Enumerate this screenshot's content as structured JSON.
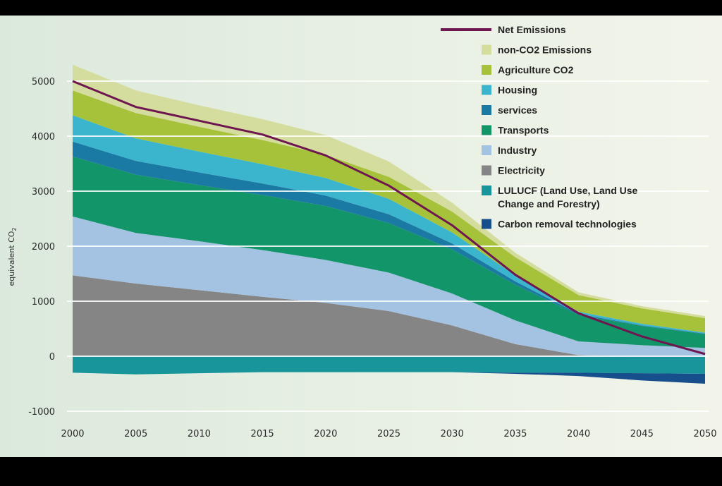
{
  "chart_data": {
    "type": "area",
    "title": "",
    "xlabel": "",
    "ylabel": "equivalent CO",
    "ylabel_sub": "2",
    "xlim": [
      2000,
      2050
    ],
    "ylim": [
      -1200,
      5400
    ],
    "grid": true,
    "legend_position": "top-right",
    "x": [
      2000,
      2005,
      2010,
      2015,
      2020,
      2025,
      2030,
      2035,
      2040,
      2045,
      2050
    ],
    "x_ticks": [
      "2000",
      "2005",
      "2010",
      "2015",
      "2020",
      "2025",
      "2030",
      "2035",
      "2040",
      "2045",
      "2050"
    ],
    "y_ticks": [
      {
        "value": 5000,
        "label": "5000"
      },
      {
        "value": 4000,
        "label": "4000"
      },
      {
        "value": 3000,
        "label": "3000"
      },
      {
        "value": 2000,
        "label": "2000"
      },
      {
        "value": 1000,
        "label": "1000"
      },
      {
        "value": 0,
        "label": "0"
      },
      {
        "value": -1000,
        "label": "-1000"
      }
    ],
    "positive_series": [
      {
        "name": "Electricity",
        "color": "#858585",
        "values": [
          1470,
          1320,
          1200,
          1080,
          970,
          820,
          560,
          220,
          20,
          0,
          0
        ]
      },
      {
        "name": "Industry",
        "color": "#a4c3e3",
        "values": [
          1070,
          920,
          890,
          850,
          780,
          700,
          580,
          430,
          250,
          200,
          150
        ]
      },
      {
        "name": "Transports",
        "color": "#13956a",
        "values": [
          1090,
          1060,
          1020,
          1000,
          980,
          900,
          800,
          650,
          480,
          350,
          250
        ]
      },
      {
        "name": "services",
        "color": "#1b7aa3",
        "values": [
          270,
          250,
          230,
          210,
          190,
          160,
          110,
          60,
          20,
          10,
          10
        ]
      },
      {
        "name": "Housing",
        "color": "#3ab5cd",
        "values": [
          480,
          410,
          380,
          350,
          320,
          280,
          200,
          110,
          40,
          30,
          20
        ]
      },
      {
        "name": "Agriculture CO2",
        "color": "#a6c23a",
        "values": [
          450,
          460,
          450,
          440,
          420,
          400,
          380,
          330,
          300,
          280,
          260
        ]
      },
      {
        "name": "non-CO2 Emissions",
        "color": "#d5dd9e",
        "values": [
          470,
          410,
          390,
          380,
          360,
          280,
          160,
          80,
          50,
          40,
          40
        ]
      }
    ],
    "negative_series": [
      {
        "name": "LULUCF (Land Use, Land Use Change and Forestry)",
        "color": "#17959b",
        "values": [
          -300,
          -330,
          -310,
          -290,
          -290,
          -290,
          -290,
          -300,
          -300,
          -310,
          -320
        ]
      },
      {
        "name": "Carbon removal technologies",
        "color": "#164f8c",
        "values": [
          0,
          0,
          0,
          0,
          0,
          0,
          0,
          -20,
          -60,
          -130,
          -180
        ]
      }
    ],
    "line_series": [
      {
        "name": "Net Emissions",
        "color": "#6e1650",
        "values": [
          5000,
          4530,
          4280,
          4030,
          3650,
          3100,
          2380,
          1480,
          780,
          360,
          40
        ]
      }
    ],
    "legend": [
      {
        "label": "Net Emissions",
        "kind": "line",
        "color": "#6e1650"
      },
      {
        "label": "non-CO2 Emissions",
        "kind": "box",
        "color": "#d5dd9e"
      },
      {
        "label": "Agriculture CO2",
        "kind": "box",
        "color": "#a6c23a"
      },
      {
        "label": "Housing",
        "kind": "box",
        "color": "#3ab5cd"
      },
      {
        "label": "services",
        "kind": "box",
        "color": "#1b7aa3"
      },
      {
        "label": "Transports",
        "kind": "box",
        "color": "#13956a"
      },
      {
        "label": "Industry",
        "kind": "box",
        "color": "#a4c3e3"
      },
      {
        "label": "Electricity",
        "kind": "box",
        "color": "#858585"
      },
      {
        "label": "LULUCF (Land Use, Land Use",
        "label2": "Change and Forestry)",
        "kind": "box",
        "color": "#17959b"
      },
      {
        "label": "Carbon removal technologies",
        "kind": "box",
        "color": "#164f8c"
      }
    ]
  }
}
